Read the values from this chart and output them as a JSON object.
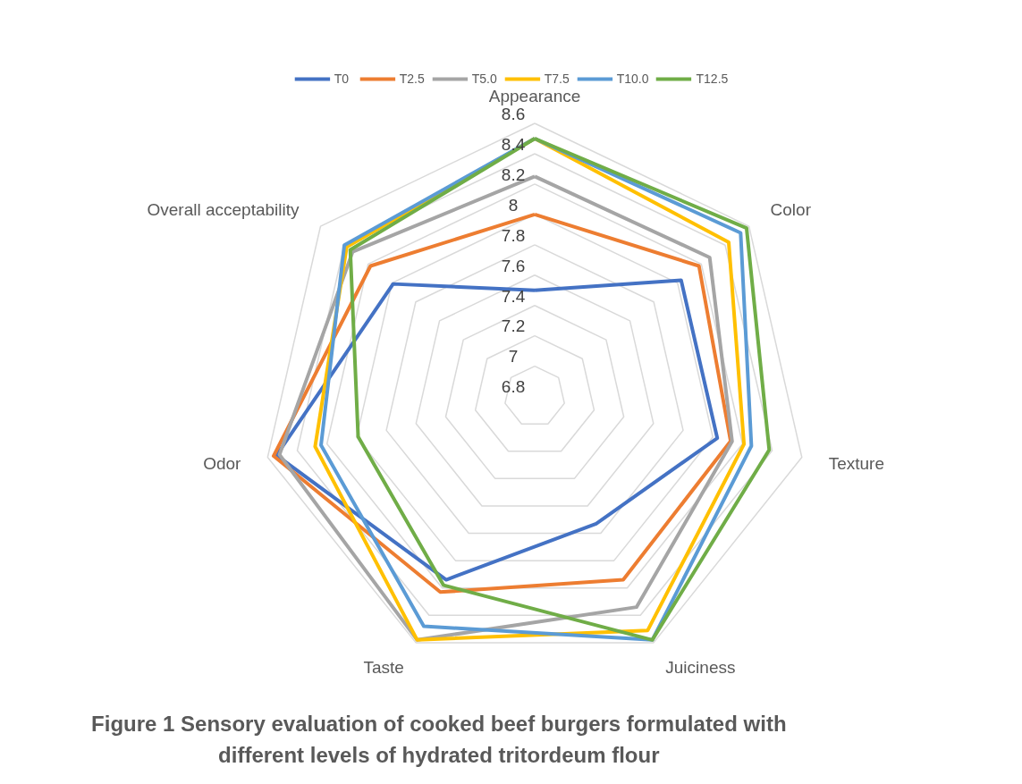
{
  "chart_data": {
    "type": "radar",
    "title": "Figure 1 Sensory evaluation of cooked beef burgers formulated with different levels of hydrated tritordeum flour",
    "categories": [
      "Appearance",
      "Color",
      "Texture",
      "Juiciness",
      "Taste",
      "Odor",
      "Overall acceptability"
    ],
    "ylim": [
      6.8,
      8.6
    ],
    "yticks": [
      6.8,
      7,
      7.2,
      7.4,
      7.6,
      7.8,
      8,
      8.2,
      8.4,
      8.6
    ],
    "grid": true,
    "legend": "top",
    "marker": "none",
    "line_style": "solid",
    "series": [
      {
        "name": "T0",
        "color": "#4472c4",
        "values": [
          7.5,
          8.03,
          8.03,
          7.73,
          8.14,
          8.54,
          7.99
        ]
      },
      {
        "name": "T2.5",
        "color": "#ed7d31",
        "values": [
          8.0,
          8.18,
          8.12,
          8.14,
          8.23,
          8.56,
          8.18
        ]
      },
      {
        "name": "T5.0",
        "color": "#a5a5a5",
        "values": [
          8.25,
          8.27,
          8.13,
          8.34,
          8.58,
          8.52,
          8.33
        ]
      },
      {
        "name": "T7.5",
        "color": "#ffc000",
        "values": [
          8.5,
          8.43,
          8.21,
          8.51,
          8.58,
          8.28,
          8.38
        ]
      },
      {
        "name": "T10.0",
        "color": "#5b9bd5",
        "values": [
          8.5,
          8.53,
          8.26,
          8.58,
          8.48,
          8.24,
          8.4
        ]
      },
      {
        "name": "T12.5",
        "color": "#70ad47",
        "values": [
          8.5,
          8.58,
          8.38,
          8.58,
          8.18,
          7.99,
          8.35
        ]
      }
    ]
  }
}
